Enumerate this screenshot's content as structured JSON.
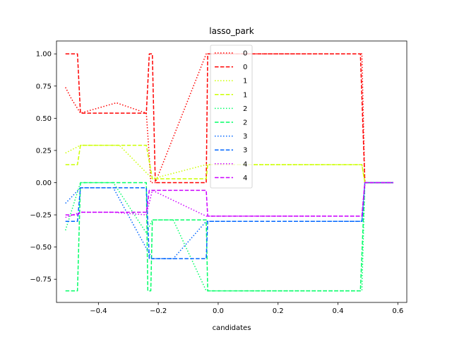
{
  "chart_data": {
    "type": "line",
    "title": "lasso_park",
    "xlabel": "candidates",
    "ylabel": "",
    "xlim": [
      -0.54,
      0.63
    ],
    "ylim": [
      -0.93,
      1.1
    ],
    "xticks": [
      -0.4,
      -0.2,
      0.0,
      0.2,
      0.4,
      0.6
    ],
    "xtick_labels": [
      "−0.4",
      "−0.2",
      "0.0",
      "0.2",
      "0.4",
      "0.6"
    ],
    "yticks": [
      -0.75,
      -0.5,
      -0.25,
      0.0,
      0.25,
      0.5,
      0.75,
      1.0
    ],
    "ytick_labels": [
      "−0.75",
      "−0.50",
      "−0.25",
      "0.00",
      "0.25",
      "0.50",
      "0.75",
      "1.00"
    ],
    "grid": false,
    "legend_position": "upper-center",
    "series": [
      {
        "name": "0",
        "color": "#ff0000",
        "style": "dotted",
        "x": [
          -0.51,
          -0.49,
          -0.46,
          -0.34,
          -0.24,
          -0.23,
          -0.225,
          -0.22,
          -0.21,
          -0.04,
          0.48,
          0.49,
          0.585
        ],
        "y": [
          0.74,
          0.65,
          0.54,
          0.62,
          0.54,
          0.2,
          0.0,
          0.0,
          0.0,
          1.0,
          1.0,
          0.0,
          0.0
        ]
      },
      {
        "name": "0",
        "color": "#ff0000",
        "style": "dashed",
        "x": [
          -0.51,
          -0.47,
          -0.46,
          -0.24,
          -0.23,
          -0.22,
          -0.21,
          -0.04,
          -0.035,
          0.475,
          0.49,
          0.585
        ],
        "y": [
          1.0,
          1.0,
          0.54,
          0.54,
          1.0,
          1.0,
          0.0,
          0.0,
          1.0,
          1.0,
          0.0,
          0.0
        ]
      },
      {
        "name": "1",
        "color": "#ccff00",
        "style": "dotted",
        "x": [
          -0.51,
          -0.46,
          -0.33,
          -0.22,
          -0.04,
          0.48,
          0.49,
          0.585
        ],
        "y": [
          0.23,
          0.29,
          0.29,
          0.03,
          0.14,
          0.14,
          0.0,
          0.0
        ]
      },
      {
        "name": "1",
        "color": "#ccff00",
        "style": "dashed",
        "x": [
          -0.51,
          -0.47,
          -0.46,
          -0.24,
          -0.22,
          -0.04,
          -0.035,
          0.48,
          0.49,
          0.585
        ],
        "y": [
          0.14,
          0.14,
          0.29,
          0.29,
          0.03,
          0.03,
          0.14,
          0.14,
          0.0,
          0.0
        ]
      },
      {
        "name": "2",
        "color": "#00ff66",
        "style": "dotted",
        "x": [
          -0.51,
          -0.46,
          -0.35,
          -0.24,
          -0.22,
          -0.15,
          -0.04,
          0.48,
          0.49,
          0.585
        ],
        "y": [
          -0.37,
          0.0,
          0.0,
          -0.39,
          -0.29,
          -0.29,
          -0.84,
          -0.84,
          0.0,
          0.0
        ]
      },
      {
        "name": "2",
        "color": "#00ff66",
        "style": "dashed",
        "x": [
          -0.51,
          -0.47,
          -0.46,
          -0.24,
          -0.235,
          -0.225,
          -0.22,
          -0.04,
          -0.035,
          0.475,
          0.49,
          0.585
        ],
        "y": [
          -0.84,
          -0.84,
          0.0,
          0.0,
          -0.84,
          -0.84,
          -0.29,
          -0.29,
          -0.84,
          -0.84,
          0.0,
          0.0
        ]
      },
      {
        "name": "3",
        "color": "#0066ff",
        "style": "dotted",
        "x": [
          -0.51,
          -0.46,
          -0.35,
          -0.24,
          -0.22,
          -0.15,
          -0.04,
          0.48,
          0.49,
          0.585
        ],
        "y": [
          -0.16,
          -0.04,
          -0.04,
          -0.51,
          -0.59,
          -0.59,
          -0.3,
          -0.3,
          0.0,
          0.0
        ]
      },
      {
        "name": "3",
        "color": "#0066ff",
        "style": "dashed",
        "x": [
          -0.51,
          -0.47,
          -0.46,
          -0.24,
          -0.23,
          -0.04,
          -0.035,
          0.48,
          0.49,
          0.585
        ],
        "y": [
          -0.3,
          -0.3,
          -0.04,
          -0.04,
          -0.59,
          -0.59,
          -0.3,
          -0.3,
          0.0,
          0.0
        ]
      },
      {
        "name": "4",
        "color": "#cc00ff",
        "style": "dotted",
        "x": [
          -0.51,
          -0.46,
          -0.35,
          -0.24,
          -0.22,
          -0.04,
          0.48,
          0.49,
          0.585
        ],
        "y": [
          -0.27,
          -0.23,
          -0.23,
          -0.25,
          -0.06,
          -0.26,
          -0.26,
          0.0,
          0.0
        ]
      },
      {
        "name": "4",
        "color": "#cc00ff",
        "style": "dashed",
        "x": [
          -0.51,
          -0.47,
          -0.46,
          -0.24,
          -0.23,
          -0.04,
          -0.035,
          0.48,
          0.49,
          0.585
        ],
        "y": [
          -0.25,
          -0.25,
          -0.23,
          -0.23,
          -0.06,
          -0.06,
          -0.26,
          -0.26,
          0.0,
          0.0
        ]
      }
    ]
  }
}
